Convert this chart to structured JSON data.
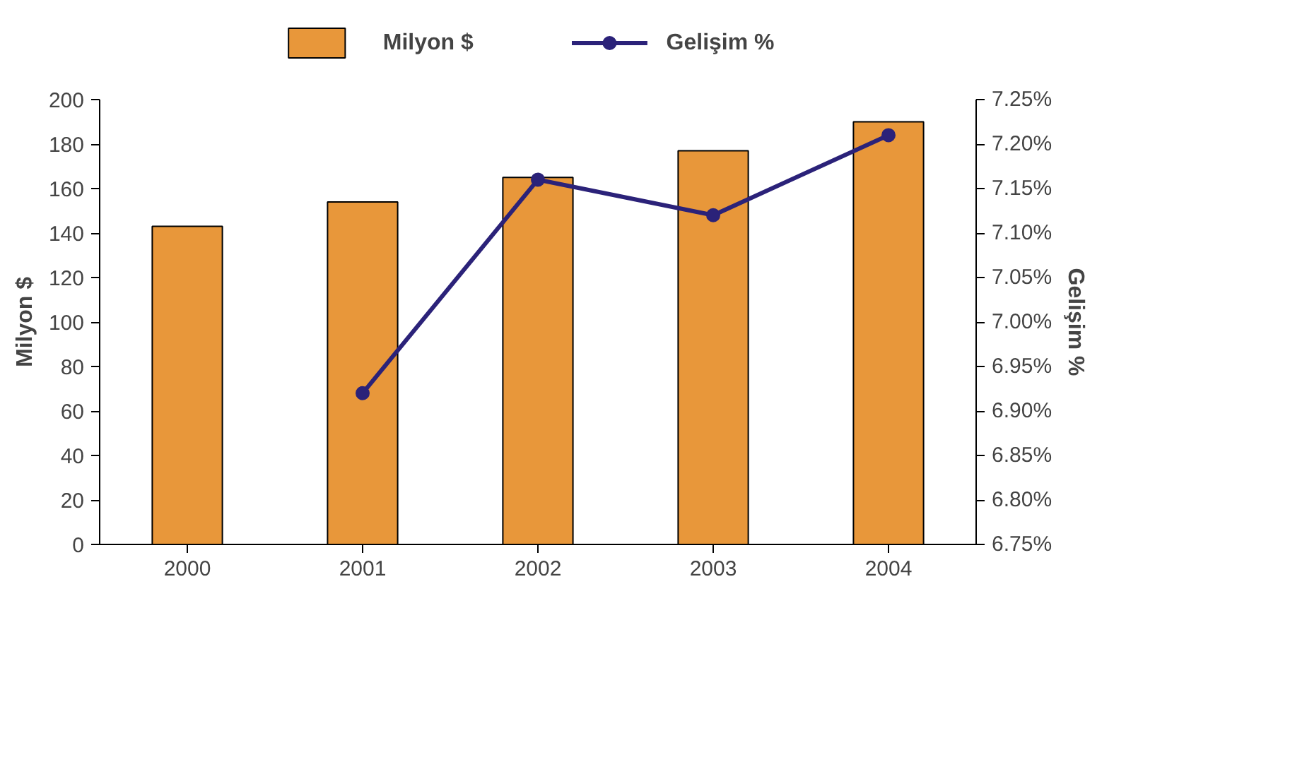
{
  "chart_data": {
    "type": "bar",
    "categories": [
      "2000",
      "2001",
      "2002",
      "2003",
      "2004"
    ],
    "series": [
      {
        "name": "Milyon $",
        "color": "#e8973a",
        "values": [
          143,
          154,
          165,
          177,
          190
        ]
      },
      {
        "name": "Gelişim %",
        "type": "line",
        "axis": "y2",
        "color": "#2b2279",
        "values": [
          null,
          6.92,
          7.16,
          7.12,
          7.21
        ],
        "marker": "circle",
        "line_style": "solid"
      }
    ],
    "ylabel": "Milyon $",
    "y2label": "Gelişim %",
    "ylim": [
      0,
      200
    ],
    "yticks": [
      0,
      20,
      40,
      60,
      80,
      100,
      120,
      140,
      160,
      180,
      200
    ],
    "y2lim": [
      6.75,
      7.25
    ],
    "y2ticks": [
      {
        "value": 6.75,
        "label": "6.75%"
      },
      {
        "value": 6.8,
        "label": "6.80%"
      },
      {
        "value": 6.85,
        "label": "6.85%"
      },
      {
        "value": 6.9,
        "label": "6.90%"
      },
      {
        "value": 6.95,
        "label": "6.95%"
      },
      {
        "value": 7.0,
        "label": "7.00%"
      },
      {
        "value": 7.05,
        "label": "7.05%"
      },
      {
        "value": 7.1,
        "label": "7.10%"
      },
      {
        "value": 7.15,
        "label": "7.15%"
      },
      {
        "value": 7.2,
        "label": "7.20%"
      },
      {
        "value": 7.25,
        "label": "7.25%"
      }
    ],
    "grid": false,
    "legend": "top"
  }
}
